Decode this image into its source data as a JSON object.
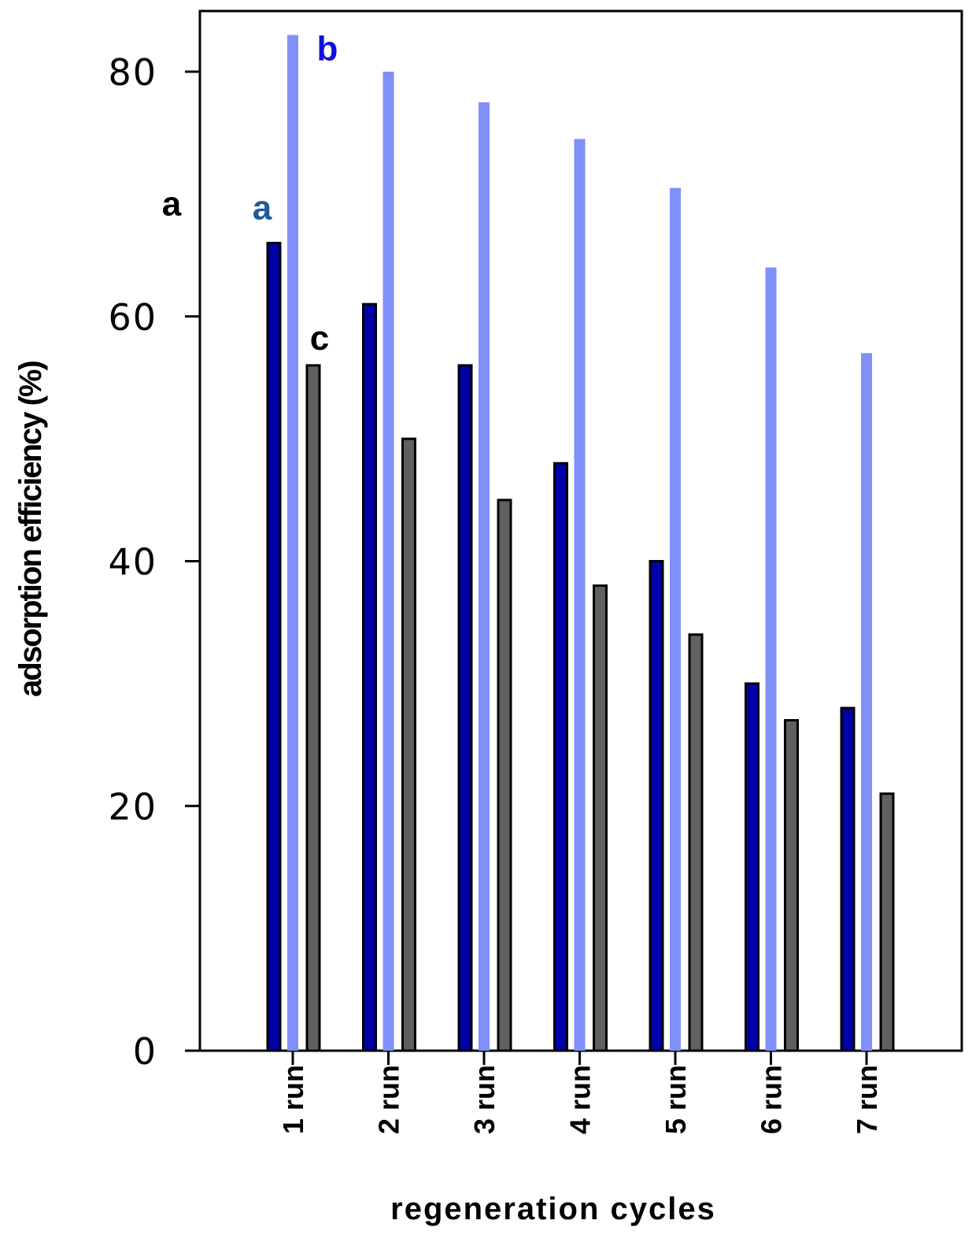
{
  "chart_data": {
    "type": "bar",
    "title": "",
    "xlabel": "regeneration cycles",
    "ylabel": "adsorption efficiency (%)",
    "ylim": [
      0,
      80
    ],
    "yticks": [
      "0",
      "20",
      "40",
      "60",
      "80"
    ],
    "categories": [
      "1 run",
      "2 run",
      "3 run",
      "4 run",
      "5 run",
      "6 run",
      "7 run"
    ],
    "series": [
      {
        "color": "#0000a8",
        "values": [
          66,
          61,
          56,
          48,
          40,
          30,
          28
        ]
      },
      {
        "color": "#8090f8",
        "values": [
          83,
          80,
          77.5,
          74.5,
          70.5,
          64,
          57
        ]
      },
      {
        "color": "#606060",
        "values": [
          56,
          50,
          45,
          38,
          34,
          27,
          21
        ]
      }
    ],
    "annotations": [
      {
        "text": "a",
        "color": "#000000",
        "ref": "axis-left"
      },
      {
        "text": "a",
        "color": "#1f5b9a",
        "ref": "series-0"
      },
      {
        "text": "b",
        "color": "#1010e0",
        "ref": "series-1"
      },
      {
        "text": "c",
        "color": "#000000",
        "ref": "series-2"
      }
    ],
    "grid": false,
    "legend": "none"
  }
}
